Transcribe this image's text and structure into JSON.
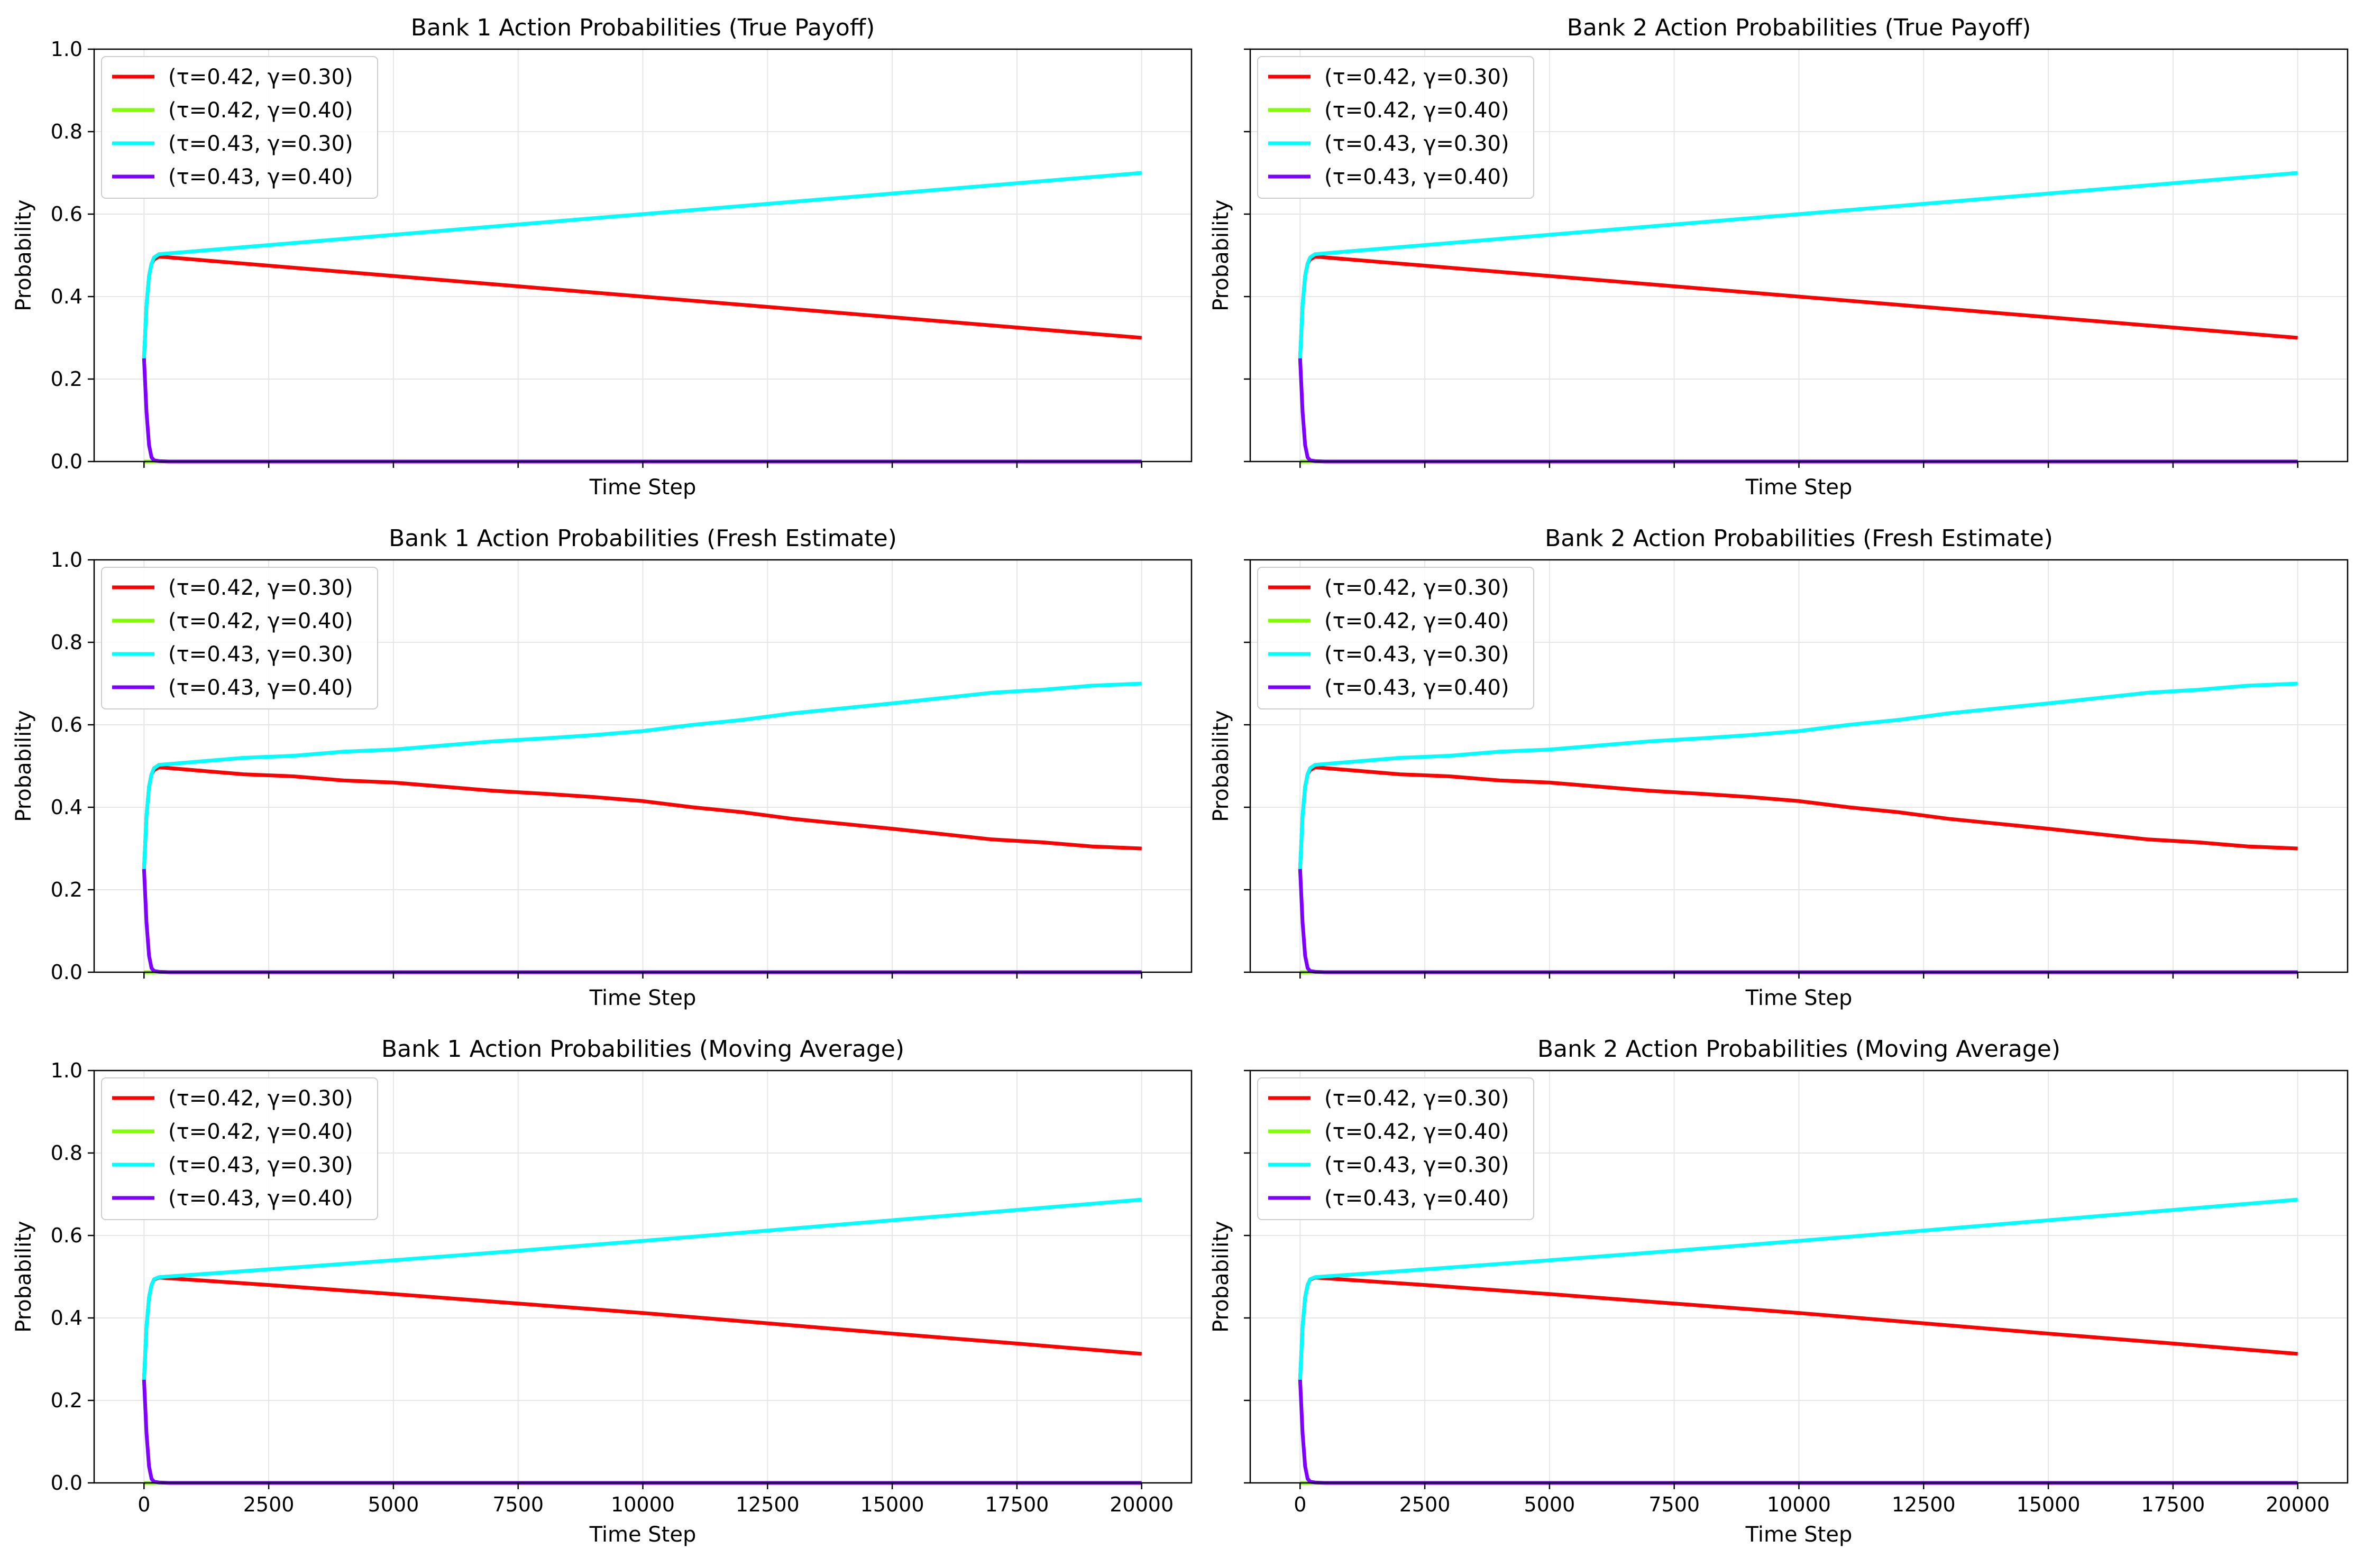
{
  "chart_data": [
    {
      "type": "line",
      "title": "Bank 1 Action Probabilities (True Payoff)",
      "xlabel": "Time Step",
      "ylabel": "Probability",
      "xlim": [
        -1000,
        21000
      ],
      "ylim": [
        0.0,
        1.0
      ],
      "xticks": [
        0,
        2500,
        5000,
        7500,
        10000,
        12500,
        15000,
        17500,
        20000
      ],
      "yticks": [
        0.0,
        0.2,
        0.4,
        0.6,
        0.8,
        1.0
      ],
      "xtick_labels_visible": false,
      "ytick_labels_visible": true,
      "grid": true,
      "legend": "top-left",
      "series": [
        {
          "name": "(τ=0.42, γ=0.30)",
          "color": "#ff0000",
          "x": [
            0,
            50,
            100,
            150,
            200,
            300,
            2500,
            5000,
            7500,
            10000,
            12500,
            15000,
            17500,
            20000
          ],
          "y": [
            0.25,
            0.38,
            0.45,
            0.48,
            0.49,
            0.497,
            0.475,
            0.45,
            0.425,
            0.4,
            0.375,
            0.35,
            0.325,
            0.3
          ]
        },
        {
          "name": "(τ=0.42, γ=0.40)",
          "color": "#7fff00",
          "x": [
            0,
            20000
          ],
          "y": [
            0.0,
            0.0
          ]
        },
        {
          "name": "(τ=0.43, γ=0.30)",
          "color": "#00ffff",
          "x": [
            0,
            50,
            100,
            150,
            200,
            300,
            2500,
            5000,
            7500,
            10000,
            12500,
            15000,
            17500,
            20000
          ],
          "y": [
            0.25,
            0.38,
            0.45,
            0.48,
            0.495,
            0.503,
            0.525,
            0.55,
            0.575,
            0.6,
            0.625,
            0.65,
            0.675,
            0.7
          ]
        },
        {
          "name": "(τ=0.43, γ=0.40)",
          "color": "#7f00ff",
          "x": [
            0,
            50,
            100,
            150,
            200,
            300,
            500,
            20000
          ],
          "y": [
            0.25,
            0.12,
            0.04,
            0.01,
            0.003,
            0.001,
            0.0,
            0.0
          ]
        }
      ]
    },
    {
      "type": "line",
      "title": "Bank 2 Action Probabilities (True Payoff)",
      "xlabel": "Time Step",
      "ylabel": "Probability",
      "xlim": [
        -1000,
        21000
      ],
      "ylim": [
        0.0,
        1.0
      ],
      "xticks": [
        0,
        2500,
        5000,
        7500,
        10000,
        12500,
        15000,
        17500,
        20000
      ],
      "yticks": [
        0.0,
        0.2,
        0.4,
        0.6,
        0.8,
        1.0
      ],
      "xtick_labels_visible": false,
      "ytick_labels_visible": false,
      "grid": true,
      "legend": "top-left",
      "series": [
        {
          "name": "(τ=0.42, γ=0.30)",
          "color": "#ff0000",
          "x": [
            0,
            50,
            100,
            150,
            200,
            300,
            2500,
            5000,
            7500,
            10000,
            12500,
            15000,
            17500,
            20000
          ],
          "y": [
            0.25,
            0.38,
            0.45,
            0.48,
            0.49,
            0.497,
            0.475,
            0.45,
            0.425,
            0.4,
            0.375,
            0.35,
            0.325,
            0.3
          ]
        },
        {
          "name": "(τ=0.42, γ=0.40)",
          "color": "#7fff00",
          "x": [
            0,
            20000
          ],
          "y": [
            0.0,
            0.0
          ]
        },
        {
          "name": "(τ=0.43, γ=0.30)",
          "color": "#00ffff",
          "x": [
            0,
            50,
            100,
            150,
            200,
            300,
            2500,
            5000,
            7500,
            10000,
            12500,
            15000,
            17500,
            20000
          ],
          "y": [
            0.25,
            0.38,
            0.45,
            0.48,
            0.495,
            0.503,
            0.525,
            0.55,
            0.575,
            0.6,
            0.625,
            0.65,
            0.675,
            0.7
          ]
        },
        {
          "name": "(τ=0.43, γ=0.40)",
          "color": "#7f00ff",
          "x": [
            0,
            50,
            100,
            150,
            200,
            300,
            500,
            20000
          ],
          "y": [
            0.25,
            0.12,
            0.04,
            0.01,
            0.003,
            0.001,
            0.0,
            0.0
          ]
        }
      ]
    },
    {
      "type": "line",
      "title": "Bank 1 Action Probabilities (Fresh Estimate)",
      "xlabel": "Time Step",
      "ylabel": "Probability",
      "xlim": [
        -1000,
        21000
      ],
      "ylim": [
        0.0,
        1.0
      ],
      "xticks": [
        0,
        2500,
        5000,
        7500,
        10000,
        12500,
        15000,
        17500,
        20000
      ],
      "yticks": [
        0.0,
        0.2,
        0.4,
        0.6,
        0.8,
        1.0
      ],
      "xtick_labels_visible": false,
      "ytick_labels_visible": true,
      "grid": true,
      "legend": "top-left",
      "series": [
        {
          "name": "(τ=0.42, γ=0.30)",
          "color": "#ff0000",
          "x": [
            0,
            50,
            100,
            150,
            200,
            300,
            1000,
            2000,
            3000,
            4000,
            5000,
            6000,
            7000,
            8000,
            9000,
            10000,
            11000,
            12000,
            13000,
            14000,
            15000,
            16000,
            17000,
            18000,
            19000,
            20000
          ],
          "y": [
            0.25,
            0.38,
            0.45,
            0.48,
            0.49,
            0.497,
            0.49,
            0.48,
            0.475,
            0.465,
            0.46,
            0.45,
            0.44,
            0.433,
            0.425,
            0.415,
            0.4,
            0.388,
            0.372,
            0.36,
            0.348,
            0.335,
            0.322,
            0.315,
            0.305,
            0.3
          ]
        },
        {
          "name": "(τ=0.42, γ=0.40)",
          "color": "#7fff00",
          "x": [
            0,
            20000
          ],
          "y": [
            0.0,
            0.0
          ]
        },
        {
          "name": "(τ=0.43, γ=0.30)",
          "color": "#00ffff",
          "x": [
            0,
            50,
            100,
            150,
            200,
            300,
            1000,
            2000,
            3000,
            4000,
            5000,
            6000,
            7000,
            8000,
            9000,
            10000,
            11000,
            12000,
            13000,
            14000,
            15000,
            16000,
            17000,
            18000,
            19000,
            20000
          ],
          "y": [
            0.25,
            0.38,
            0.45,
            0.48,
            0.495,
            0.503,
            0.51,
            0.52,
            0.525,
            0.535,
            0.54,
            0.55,
            0.56,
            0.567,
            0.575,
            0.585,
            0.6,
            0.612,
            0.628,
            0.64,
            0.652,
            0.665,
            0.678,
            0.685,
            0.695,
            0.7
          ]
        },
        {
          "name": "(τ=0.43, γ=0.40)",
          "color": "#7f00ff",
          "x": [
            0,
            50,
            100,
            150,
            200,
            300,
            500,
            20000
          ],
          "y": [
            0.25,
            0.12,
            0.04,
            0.01,
            0.003,
            0.001,
            0.0,
            0.0
          ]
        }
      ]
    },
    {
      "type": "line",
      "title": "Bank 2 Action Probabilities (Fresh Estimate)",
      "xlabel": "Time Step",
      "ylabel": "Probability",
      "xlim": [
        -1000,
        21000
      ],
      "ylim": [
        0.0,
        1.0
      ],
      "xticks": [
        0,
        2500,
        5000,
        7500,
        10000,
        12500,
        15000,
        17500,
        20000
      ],
      "yticks": [
        0.0,
        0.2,
        0.4,
        0.6,
        0.8,
        1.0
      ],
      "xtick_labels_visible": false,
      "ytick_labels_visible": false,
      "grid": true,
      "legend": "top-left",
      "series": [
        {
          "name": "(τ=0.42, γ=0.30)",
          "color": "#ff0000",
          "x": [
            0,
            50,
            100,
            150,
            200,
            300,
            1000,
            2000,
            3000,
            4000,
            5000,
            6000,
            7000,
            8000,
            9000,
            10000,
            11000,
            12000,
            13000,
            14000,
            15000,
            16000,
            17000,
            18000,
            19000,
            20000
          ],
          "y": [
            0.25,
            0.38,
            0.45,
            0.48,
            0.49,
            0.497,
            0.49,
            0.48,
            0.475,
            0.465,
            0.46,
            0.45,
            0.44,
            0.433,
            0.425,
            0.415,
            0.4,
            0.388,
            0.372,
            0.36,
            0.348,
            0.335,
            0.322,
            0.315,
            0.305,
            0.3
          ]
        },
        {
          "name": "(τ=0.42, γ=0.40)",
          "color": "#7fff00",
          "x": [
            0,
            20000
          ],
          "y": [
            0.0,
            0.0
          ]
        },
        {
          "name": "(τ=0.43, γ=0.30)",
          "color": "#00ffff",
          "x": [
            0,
            50,
            100,
            150,
            200,
            300,
            1000,
            2000,
            3000,
            4000,
            5000,
            6000,
            7000,
            8000,
            9000,
            10000,
            11000,
            12000,
            13000,
            14000,
            15000,
            16000,
            17000,
            18000,
            19000,
            20000
          ],
          "y": [
            0.25,
            0.38,
            0.45,
            0.48,
            0.495,
            0.503,
            0.51,
            0.52,
            0.525,
            0.535,
            0.54,
            0.55,
            0.56,
            0.567,
            0.575,
            0.585,
            0.6,
            0.612,
            0.628,
            0.64,
            0.652,
            0.665,
            0.678,
            0.685,
            0.695,
            0.7
          ]
        },
        {
          "name": "(τ=0.43, γ=0.40)",
          "color": "#7f00ff",
          "x": [
            0,
            50,
            100,
            150,
            200,
            300,
            500,
            20000
          ],
          "y": [
            0.25,
            0.12,
            0.04,
            0.01,
            0.003,
            0.001,
            0.0,
            0.0
          ]
        }
      ]
    },
    {
      "type": "line",
      "title": "Bank 1 Action Probabilities (Moving Average)",
      "xlabel": "Time Step",
      "ylabel": "Probability",
      "xlim": [
        -1000,
        21000
      ],
      "ylim": [
        0.0,
        1.0
      ],
      "xticks": [
        0,
        2500,
        5000,
        7500,
        10000,
        12500,
        15000,
        17500,
        20000
      ],
      "yticks": [
        0.0,
        0.2,
        0.4,
        0.6,
        0.8,
        1.0
      ],
      "xtick_labels_visible": true,
      "ytick_labels_visible": true,
      "grid": true,
      "legend": "top-left",
      "series": [
        {
          "name": "(τ=0.42, γ=0.30)",
          "color": "#ff0000",
          "x": [
            0,
            50,
            100,
            150,
            200,
            300,
            2500,
            5000,
            7500,
            10000,
            12500,
            15000,
            17500,
            20000
          ],
          "y": [
            0.25,
            0.38,
            0.45,
            0.48,
            0.493,
            0.498,
            0.48,
            0.458,
            0.435,
            0.412,
            0.387,
            0.362,
            0.338,
            0.313
          ]
        },
        {
          "name": "(τ=0.42, γ=0.40)",
          "color": "#7fff00",
          "x": [
            0,
            20000
          ],
          "y": [
            0.0,
            0.0
          ]
        },
        {
          "name": "(τ=0.43, γ=0.30)",
          "color": "#00ffff",
          "x": [
            0,
            50,
            100,
            150,
            200,
            300,
            2500,
            5000,
            7500,
            10000,
            12500,
            15000,
            17500,
            20000
          ],
          "y": [
            0.25,
            0.38,
            0.45,
            0.48,
            0.494,
            0.499,
            0.518,
            0.54,
            0.563,
            0.587,
            0.612,
            0.637,
            0.662,
            0.687
          ]
        },
        {
          "name": "(τ=0.43, γ=0.40)",
          "color": "#7f00ff",
          "x": [
            0,
            50,
            100,
            150,
            200,
            300,
            500,
            20000
          ],
          "y": [
            0.25,
            0.12,
            0.04,
            0.01,
            0.003,
            0.001,
            0.0,
            0.0
          ]
        }
      ]
    },
    {
      "type": "line",
      "title": "Bank 2 Action Probabilities (Moving Average)",
      "xlabel": "Time Step",
      "ylabel": "Probability",
      "xlim": [
        -1000,
        21000
      ],
      "ylim": [
        0.0,
        1.0
      ],
      "xticks": [
        0,
        2500,
        5000,
        7500,
        10000,
        12500,
        15000,
        17500,
        20000
      ],
      "yticks": [
        0.0,
        0.2,
        0.4,
        0.6,
        0.8,
        1.0
      ],
      "xtick_labels_visible": true,
      "ytick_labels_visible": false,
      "grid": true,
      "legend": "top-left",
      "series": [
        {
          "name": "(τ=0.42, γ=0.30)",
          "color": "#ff0000",
          "x": [
            0,
            50,
            100,
            150,
            200,
            300,
            2500,
            5000,
            7500,
            10000,
            12500,
            15000,
            17500,
            20000
          ],
          "y": [
            0.25,
            0.38,
            0.45,
            0.48,
            0.493,
            0.498,
            0.48,
            0.458,
            0.435,
            0.412,
            0.387,
            0.362,
            0.338,
            0.313
          ]
        },
        {
          "name": "(τ=0.42, γ=0.40)",
          "color": "#7fff00",
          "x": [
            0,
            20000
          ],
          "y": [
            0.0,
            0.0
          ]
        },
        {
          "name": "(τ=0.43, γ=0.30)",
          "color": "#00ffff",
          "x": [
            0,
            50,
            100,
            150,
            200,
            300,
            2500,
            5000,
            7500,
            10000,
            12500,
            15000,
            17500,
            20000
          ],
          "y": [
            0.25,
            0.38,
            0.45,
            0.48,
            0.494,
            0.499,
            0.518,
            0.54,
            0.563,
            0.587,
            0.612,
            0.637,
            0.662,
            0.687
          ]
        },
        {
          "name": "(τ=0.43, γ=0.40)",
          "color": "#7f00ff",
          "x": [
            0,
            50,
            100,
            150,
            200,
            300,
            500,
            20000
          ],
          "y": [
            0.25,
            0.12,
            0.04,
            0.01,
            0.003,
            0.001,
            0.0,
            0.0
          ]
        }
      ]
    }
  ]
}
